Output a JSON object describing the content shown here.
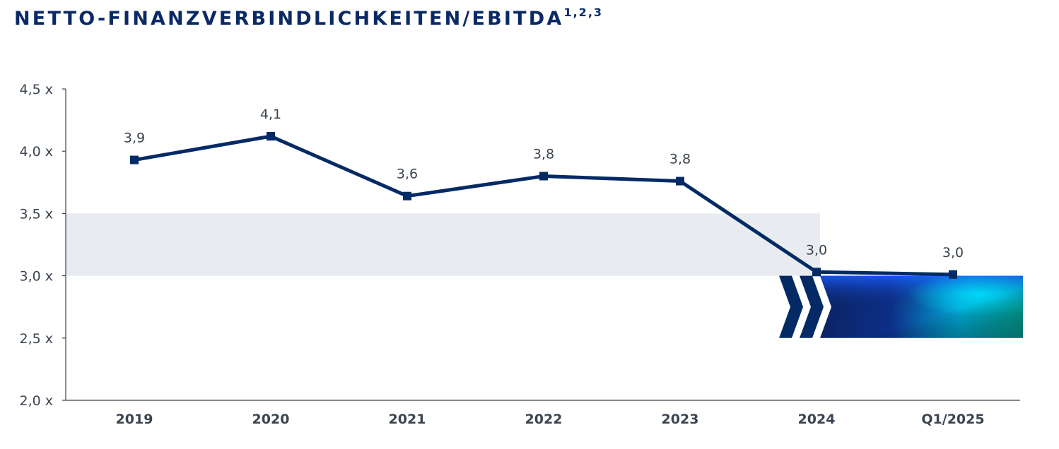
{
  "title": {
    "main": "NETTO-FINANZVERBINDLICHKEITEN/EBITDA",
    "footnotes": "1,2,3"
  },
  "colors": {
    "line": "#042a66",
    "title": "#0a2a66",
    "band": "#e8ecf0",
    "axis": "#3b4450",
    "chevron": "#042a66",
    "gradient": [
      "#0a2463",
      "#1240c0",
      "#00d0e8",
      "#00c9b0",
      "#0a6a70"
    ]
  },
  "chart_data": {
    "type": "line",
    "categories": [
      "2019",
      "2020",
      "2021",
      "2022",
      "2023",
      "2024",
      "Q1/2025"
    ],
    "series": [
      {
        "values": [
          3.93,
          4.12,
          3.64,
          3.8,
          3.76,
          3.03,
          3.01
        ],
        "labels": [
          "3,9",
          "4,1",
          "3,6",
          "3,8",
          "3,8",
          "3,0",
          "3,0"
        ]
      }
    ],
    "yticks": [
      {
        "value": 2.0,
        "label": "2,0 x"
      },
      {
        "value": 2.5,
        "label": "2,5 x"
      },
      {
        "value": 3.0,
        "label": "3,0 x"
      },
      {
        "value": 3.5,
        "label": "3,5 x"
      },
      {
        "value": 4.0,
        "label": "4,0 x"
      },
      {
        "value": 4.5,
        "label": "4,5 x"
      }
    ],
    "ylim": [
      2.0,
      4.5
    ],
    "target_band": {
      "from": 3.0,
      "to": 3.5
    },
    "target_marker": {
      "from": 2.5,
      "to": 3.0
    },
    "grid": false,
    "legend": "none"
  }
}
